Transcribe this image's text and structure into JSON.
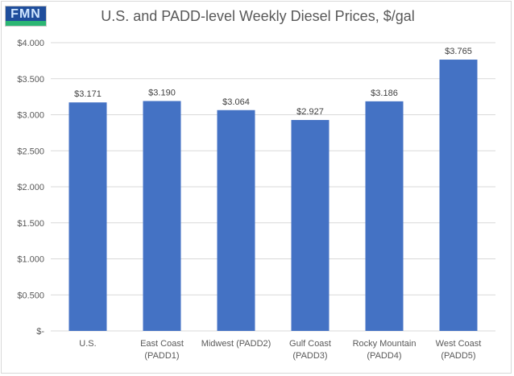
{
  "chart_data": {
    "type": "bar",
    "title": "U.S. and PADD-level Weekly Diesel Prices, $/gal",
    "categories": [
      [
        "U.S."
      ],
      [
        "East Coast",
        "(PADD1)"
      ],
      [
        "Midwest (PADD2)"
      ],
      [
        "Gulf Coast",
        "(PADD3)"
      ],
      [
        "Rocky Mountain",
        "(PADD4)"
      ],
      [
        "West Coast",
        "(PADD5)"
      ]
    ],
    "values": [
      3.171,
      3.19,
      3.064,
      2.927,
      3.186,
      3.765
    ],
    "data_labels": [
      "$3.171",
      "$3.190",
      "$3.064",
      "$2.927",
      "$3.186",
      "$3.765"
    ],
    "ylim": [
      0,
      4
    ],
    "yticks": [
      {
        "value": 0,
        "label": "$-"
      },
      {
        "value": 0.5,
        "label": "$0.500"
      },
      {
        "value": 1,
        "label": "$1.000"
      },
      {
        "value": 1.5,
        "label": "$1.500"
      },
      {
        "value": 2,
        "label": "$2.000"
      },
      {
        "value": 2.5,
        "label": "$2.500"
      },
      {
        "value": 3,
        "label": "$3.000"
      },
      {
        "value": 3.5,
        "label": "$3.500"
      },
      {
        "value": 4,
        "label": "$4.000"
      }
    ],
    "grid": true,
    "bar_color": "#4472c4",
    "grid_color": "#d9d9d9"
  },
  "logo": {
    "letters": "FMN",
    "color_bg": "#1f4e9c",
    "color_strip": "#2bb673"
  }
}
